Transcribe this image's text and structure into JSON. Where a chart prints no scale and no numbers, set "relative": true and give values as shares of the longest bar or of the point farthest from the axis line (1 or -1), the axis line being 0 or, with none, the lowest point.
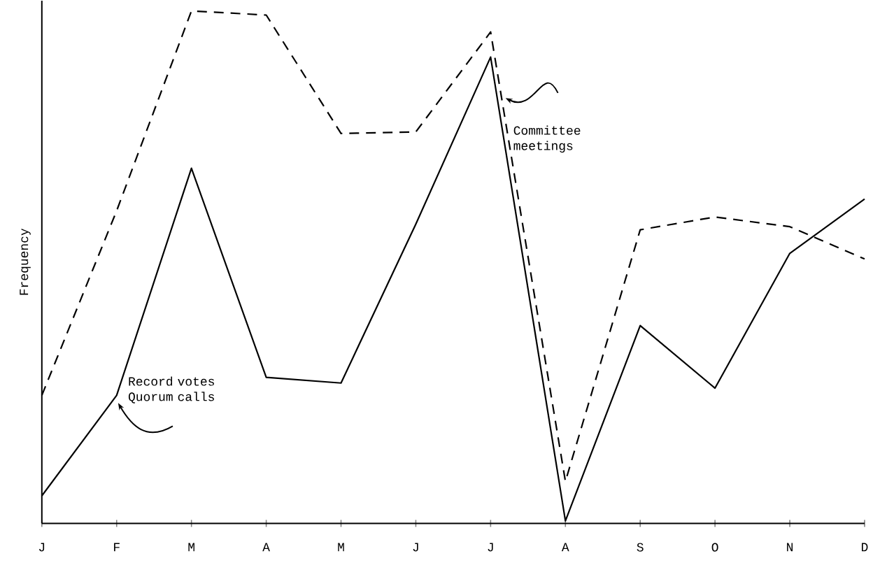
{
  "chart_data": {
    "type": "line",
    "ylabel": "Frequency",
    "categories": [
      "J",
      "F",
      "M",
      "A",
      "M",
      "J",
      "J",
      "A",
      "S",
      "O",
      "N",
      "D"
    ],
    "relative": true,
    "tick_labels": "x",
    "marker": "none",
    "series": [
      {
        "name": "Record votes Quorum calls",
        "color": "#000000",
        "line_style": "solid",
        "values": [
          0.054,
          0.25,
          0.693,
          0.285,
          0.274,
          0.584,
          0.91,
          0.005,
          0.386,
          0.264,
          0.527,
          0.633
        ]
      },
      {
        "name": "Committee meetings",
        "color": "#000000",
        "line_style": "dashed",
        "values": [
          0.25,
          0.61,
          1.0,
          0.992,
          0.761,
          0.764,
          0.959,
          0.082,
          0.573,
          0.598,
          0.579,
          0.516
        ]
      }
    ]
  }
}
